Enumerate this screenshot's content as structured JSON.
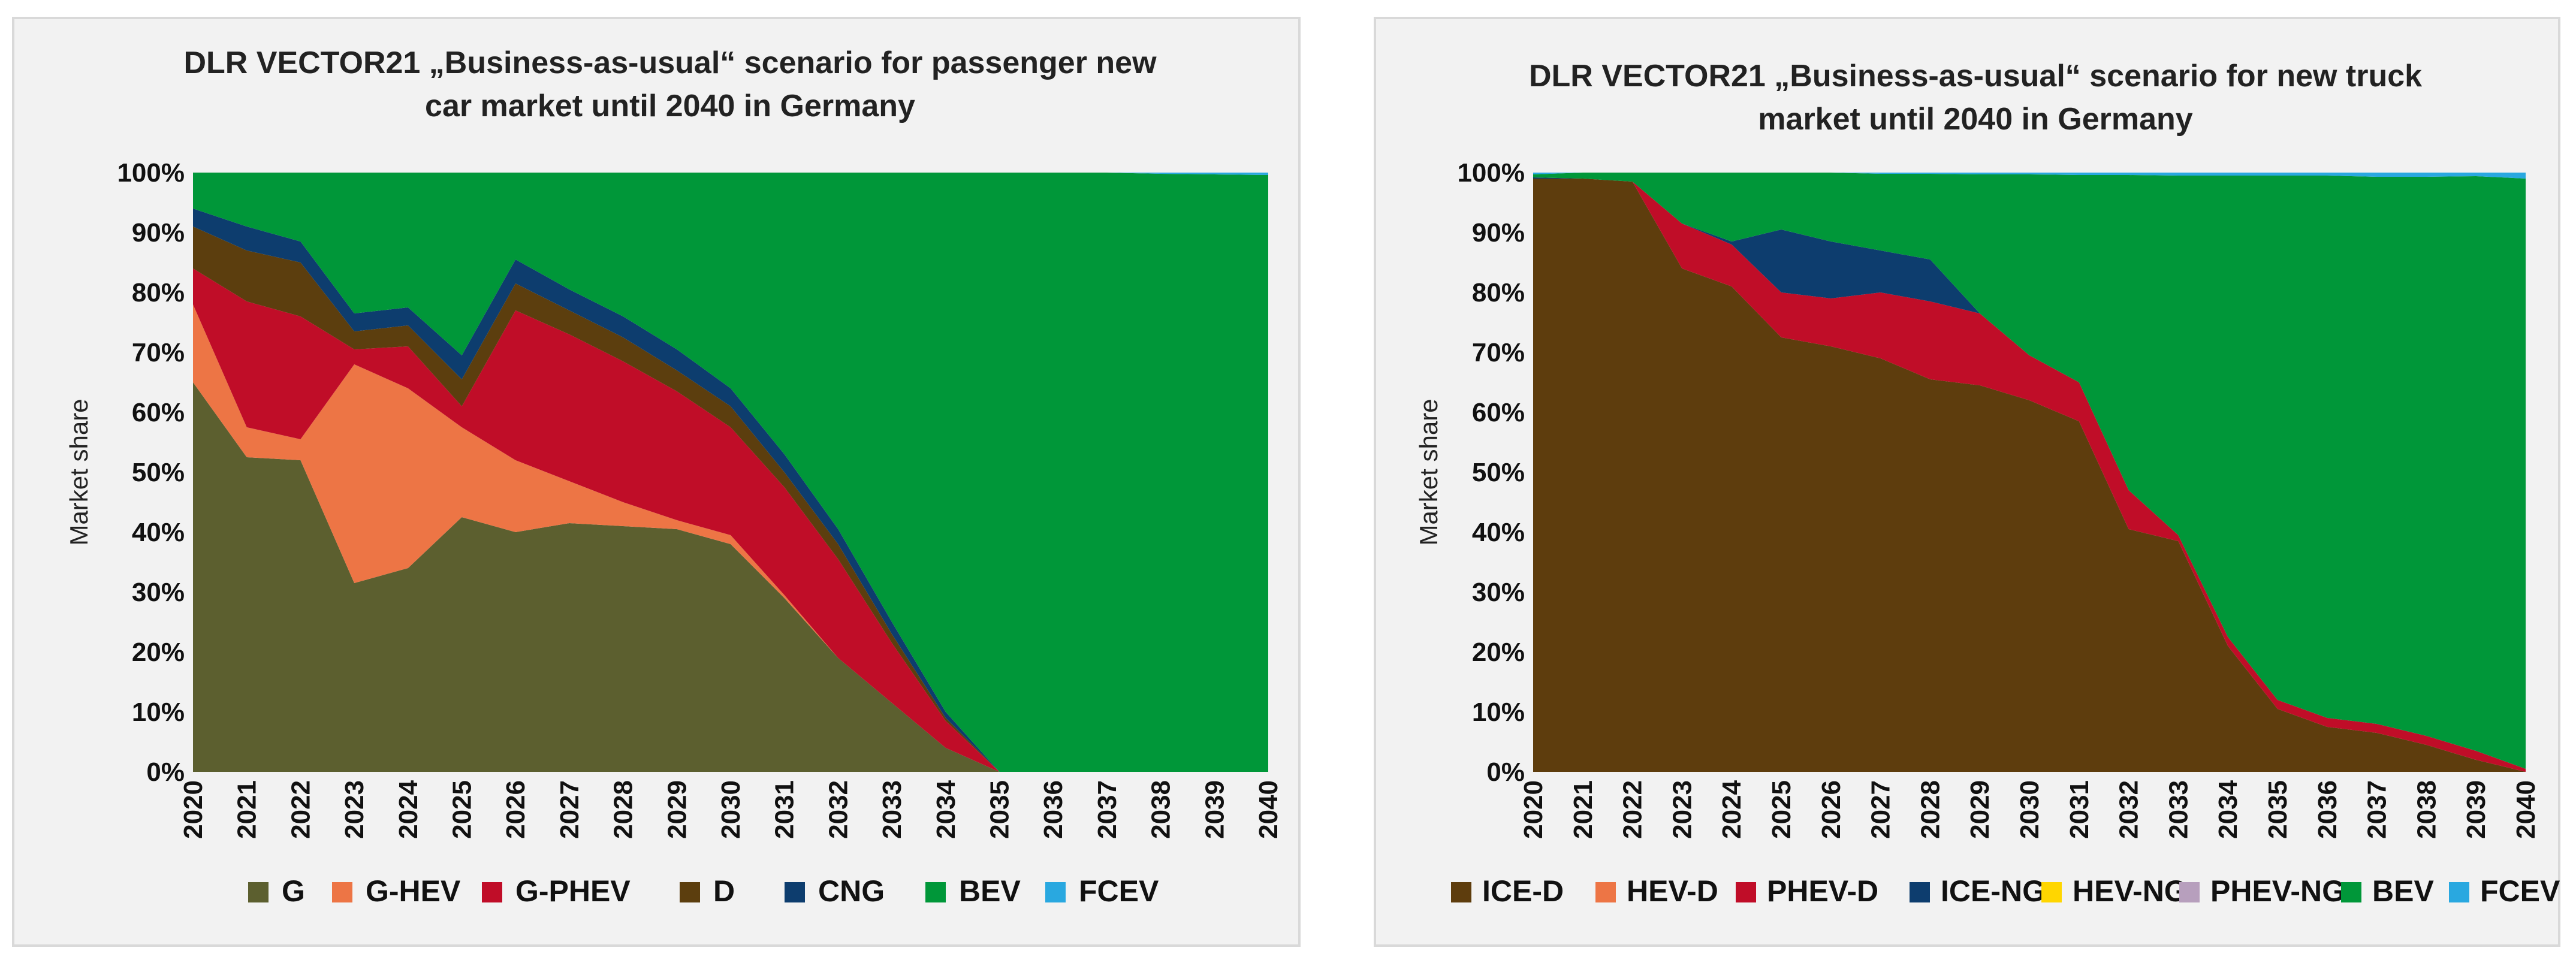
{
  "chart_data": [
    {
      "type": "area",
      "stacked": true,
      "title_lines": [
        "DLR VECTOR21 „Business-as-usual“  scenario for passenger new",
        "car market until 2040 in Germany"
      ],
      "ylabel": "Market share",
      "ylim": [
        0,
        100
      ],
      "yticks": [
        "0%",
        "10%",
        "20%",
        "30%",
        "40%",
        "50%",
        "60%",
        "70%",
        "80%",
        "90%",
        "100%"
      ],
      "categories": [
        "2020",
        "2021",
        "2022",
        "2023",
        "2024",
        "2025",
        "2026",
        "2027",
        "2028",
        "2029",
        "2030",
        "2031",
        "2032",
        "2033",
        "2034",
        "2035",
        "2036",
        "2037",
        "2038",
        "2039",
        "2040"
      ],
      "series": [
        {
          "name": "G",
          "color": "#5c5f2f",
          "values": [
            65,
            52.5,
            52,
            31.5,
            34,
            42.5,
            40,
            41.5,
            41,
            40.5,
            38,
            29,
            19,
            11.5,
            4,
            0,
            0,
            0,
            0,
            0,
            0
          ]
        },
        {
          "name": "G-HEV",
          "color": "#ed7545",
          "values": [
            13,
            5,
            3.5,
            36.5,
            30,
            15,
            12,
            7,
            4,
            1.5,
            1.5,
            0.5,
            0,
            0,
            0,
            0,
            0,
            0,
            0,
            0,
            0
          ]
        },
        {
          "name": "G-PHEV",
          "color": "#c00d28",
          "values": [
            6,
            21,
            20.5,
            2.5,
            7,
            3.5,
            25,
            24.5,
            23.5,
            21.5,
            18,
            18,
            16.5,
            10,
            4.5,
            0,
            0,
            0,
            0,
            0,
            0
          ]
        },
        {
          "name": "D",
          "color": "#5c3e0e",
          "values": [
            7,
            8.5,
            9,
            3,
            3.5,
            4.5,
            4.5,
            4,
            4,
            3.5,
            3.5,
            2.5,
            2.5,
            1.5,
            0.5,
            0,
            0,
            0,
            0,
            0,
            0
          ]
        },
        {
          "name": "CNG",
          "color": "#0d3d6e",
          "values": [
            3,
            4,
            3.5,
            3,
            3,
            4,
            4,
            3.5,
            3.5,
            3.5,
            3,
            3,
            2.5,
            2,
            1,
            0,
            0,
            0,
            0,
            0,
            0
          ]
        },
        {
          "name": "BEV",
          "color": "#009739",
          "values": [
            6,
            9,
            11.5,
            23.5,
            22.5,
            30.5,
            14.5,
            19.5,
            24,
            29.5,
            36,
            47,
            59.5,
            75,
            90,
            100,
            100,
            100,
            99.8,
            99.7,
            99.6
          ]
        },
        {
          "name": "FCEV",
          "color": "#29a8e0",
          "values": [
            0,
            0,
            0,
            0,
            0,
            0,
            0,
            0,
            0,
            0,
            0,
            0,
            0,
            0,
            0,
            0,
            0,
            0,
            0.2,
            0.3,
            0.4
          ]
        }
      ]
    },
    {
      "type": "area",
      "stacked": true,
      "title_lines": [
        "DLR VECTOR21 „Business-as-usual“  scenario for new truck",
        "market until 2040 in Germany"
      ],
      "ylabel": "Market share",
      "ylim": [
        0,
        100
      ],
      "yticks": [
        "0%",
        "10%",
        "20%",
        "30%",
        "40%",
        "50%",
        "60%",
        "70%",
        "80%",
        "90%",
        "100%"
      ],
      "categories": [
        "2020",
        "2021",
        "2022",
        "2023",
        "2024",
        "2025",
        "2026",
        "2027",
        "2028",
        "2029",
        "2030",
        "2031",
        "2032",
        "2033",
        "2034",
        "2035",
        "2036",
        "2037",
        "2038",
        "2039",
        "2040"
      ],
      "series": [
        {
          "name": "ICE-D",
          "color": "#5e3d0d",
          "values": [
            99,
            99,
            98.5,
            84,
            81,
            72.5,
            71,
            69,
            65.5,
            64.5,
            62,
            58.5,
            40.5,
            38.5,
            21,
            10.5,
            7.5,
            6.5,
            4.5,
            2,
            0
          ]
        },
        {
          "name": "HEV-D",
          "color": "#ed7545",
          "values": [
            0,
            0,
            0,
            0,
            0,
            0,
            0,
            0,
            0,
            0,
            0,
            0,
            0,
            0,
            0,
            0,
            0,
            0,
            0,
            0,
            0
          ]
        },
        {
          "name": "PHEV-D",
          "color": "#c00d28",
          "values": [
            0,
            0,
            0,
            7.5,
            7,
            7.5,
            8,
            11,
            13,
            12,
            7.5,
            6.5,
            6.5,
            1,
            1.5,
            1.5,
            1.5,
            1.5,
            1.5,
            1.5,
            0.5
          ]
        },
        {
          "name": "ICE-NG",
          "color": "#0d3d6e",
          "values": [
            0.2,
            0,
            0,
            0,
            0.5,
            10.5,
            9.5,
            7,
            7,
            0,
            0,
            0,
            0,
            0,
            0,
            0,
            0,
            0,
            0,
            0,
            0
          ]
        },
        {
          "name": "HEV-NG",
          "color": "#ffd600",
          "values": [
            0,
            0,
            0,
            0,
            0,
            0,
            0,
            0,
            0,
            0,
            0,
            0,
            0,
            0,
            0,
            0,
            0,
            0,
            0,
            0,
            0
          ]
        },
        {
          "name": "PHEV-NG",
          "color": "#b79fbd",
          "values": [
            0,
            0,
            0,
            0,
            0,
            0,
            0,
            0,
            0,
            0,
            0,
            0,
            0,
            0,
            0,
            0,
            0,
            0,
            0,
            0,
            0
          ]
        },
        {
          "name": "BEV",
          "color": "#009739",
          "values": [
            0.5,
            1,
            1.5,
            8.5,
            11.5,
            9.5,
            11.5,
            12.8,
            14.3,
            23.2,
            30.2,
            34.6,
            52.6,
            60,
            77,
            87.5,
            90.5,
            91.3,
            93.3,
            95.9,
            98.5
          ]
        },
        {
          "name": "FCEV",
          "color": "#29a8e0",
          "values": [
            0.3,
            0,
            0,
            0,
            0,
            0,
            0,
            0.2,
            0.2,
            0.3,
            0.3,
            0.4,
            0.4,
            0.5,
            0.5,
            0.5,
            0.5,
            0.7,
            0.7,
            0.6,
            1
          ]
        }
      ]
    }
  ]
}
